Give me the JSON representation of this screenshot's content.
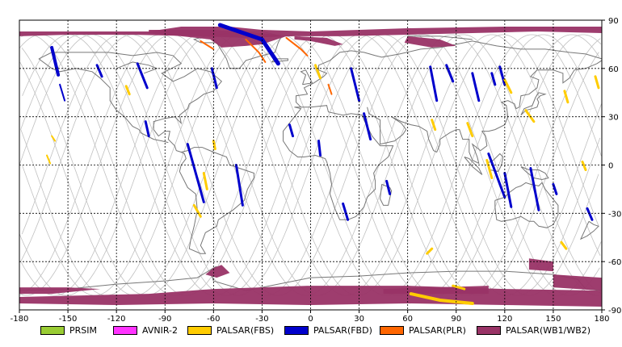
{
  "map": {
    "lon_range": [
      -180,
      180
    ],
    "lat_range": [
      -90,
      90
    ],
    "grid": true,
    "x_ticks": [
      "-180",
      "-150",
      "-120",
      "-90",
      "-60",
      "-30",
      "0",
      "30",
      "60",
      "90",
      "120",
      "150",
      "180"
    ],
    "y_ticks": [
      "90",
      "60",
      "30",
      "0",
      "-30",
      "-60",
      "-90"
    ]
  },
  "legend": [
    {
      "label": "PRSIM",
      "color": "#99cc33"
    },
    {
      "label": "AVNIR-2",
      "color": "#ff33ff"
    },
    {
      "label": "PALSAR(FBS)",
      "color": "#ffcc00"
    },
    {
      "label": "PALSAR(FBD)",
      "color": "#0000cc"
    },
    {
      "label": "PALSAR(PLR)",
      "color": "#ff6600"
    },
    {
      "label": "PALSAR(WB1/WB2)",
      "color": "#993366"
    }
  ],
  "colors": {
    "orbit": "#c0c0c0",
    "coast": "#777777",
    "grid": "#000000"
  }
}
